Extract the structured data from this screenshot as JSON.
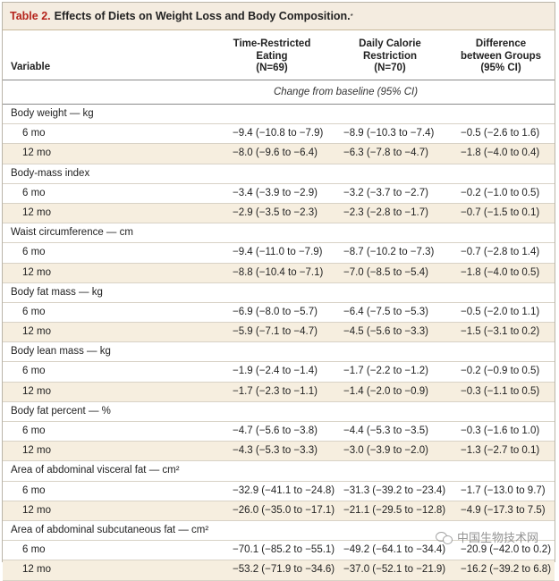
{
  "title": {
    "number": "Table 2.",
    "text": "Effects of Diets on Weight Loss and Body Composition.",
    "footnote_mark": "*"
  },
  "columns": {
    "variable": "Variable",
    "col1": [
      "Time-Restricted",
      "Eating",
      "(N=69)"
    ],
    "col2": [
      "Daily Calorie",
      "Restriction",
      "(N=70)"
    ],
    "col3": [
      "Difference",
      "between Groups",
      "(95% CI)"
    ]
  },
  "subheader": "Change from baseline (95% CI)",
  "groups": [
    {
      "label": "Body weight — kg",
      "rows": [
        {
          "label": "6 mo",
          "c1": "−9.4 (−10.8 to −7.9)",
          "c2": "−8.9 (−10.3 to −7.4)",
          "c3": "−0.5 (−2.6 to 1.6)"
        },
        {
          "label": "12 mo",
          "c1": "−8.0 (−9.6 to −6.4)",
          "c2": "−6.3 (−7.8 to −4.7)",
          "c3": "−1.8 (−4.0 to 0.4)"
        }
      ]
    },
    {
      "label": "Body-mass index",
      "rows": [
        {
          "label": "6 mo",
          "c1": "−3.4 (−3.9 to −2.9)",
          "c2": "−3.2 (−3.7 to −2.7)",
          "c3": "−0.2 (−1.0 to 0.5)"
        },
        {
          "label": "12 mo",
          "c1": "−2.9 (−3.5 to −2.3)",
          "c2": "−2.3 (−2.8 to −1.7)",
          "c3": "−0.7 (−1.5 to 0.1)"
        }
      ]
    },
    {
      "label": "Waist circumference — cm",
      "rows": [
        {
          "label": "6 mo",
          "c1": "−9.4 (−11.0 to −7.9)",
          "c2": "−8.7 (−10.2 to −7.3)",
          "c3": "−0.7 (−2.8 to 1.4)"
        },
        {
          "label": "12 mo",
          "c1": "−8.8 (−10.4 to −7.1)",
          "c2": "−7.0 (−8.5 to −5.4)",
          "c3": "−1.8 (−4.0 to 0.5)"
        }
      ]
    },
    {
      "label": "Body fat mass — kg",
      "rows": [
        {
          "label": "6 mo",
          "c1": "−6.9 (−8.0 to −5.7)",
          "c2": "−6.4 (−7.5 to −5.3)",
          "c3": "−0.5 (−2.0 to 1.1)"
        },
        {
          "label": "12 mo",
          "c1": "−5.9 (−7.1 to −4.7)",
          "c2": "−4.5 (−5.6 to −3.3)",
          "c3": "−1.5 (−3.1 to 0.2)"
        }
      ]
    },
    {
      "label": "Body lean mass — kg",
      "rows": [
        {
          "label": "6 mo",
          "c1": "−1.9 (−2.4 to −1.4)",
          "c2": "−1.7 (−2.2 to −1.2)",
          "c3": "−0.2 (−0.9 to 0.5)"
        },
        {
          "label": "12 mo",
          "c1": "−1.7 (−2.3 to −1.1)",
          "c2": "−1.4 (−2.0 to −0.9)",
          "c3": "−0.3 (−1.1 to 0.5)"
        }
      ]
    },
    {
      "label": "Body fat percent — %",
      "rows": [
        {
          "label": "6 mo",
          "c1": "−4.7 (−5.6 to −3.8)",
          "c2": "−4.4 (−5.3 to −3.5)",
          "c3": "−0.3 (−1.6 to 1.0)"
        },
        {
          "label": "12 mo",
          "c1": "−4.3 (−5.3 to −3.3)",
          "c2": "−3.0 (−3.9 to −2.0)",
          "c3": "−1.3 (−2.7 to 0.1)"
        }
      ]
    },
    {
      "label": "Area of abdominal visceral fat — cm²",
      "rows": [
        {
          "label": "6 mo",
          "c1": "−32.9 (−41.1 to −24.8)",
          "c2": "−31.3 (−39.2 to −23.4)",
          "c3": "−1.7 (−13.0 to 9.7)"
        },
        {
          "label": "12 mo",
          "c1": "−26.0 (−35.0 to −17.1)",
          "c2": "−21.1 (−29.5 to −12.8)",
          "c3": "−4.9 (−17.3 to 7.5)"
        }
      ]
    },
    {
      "label": "Area of abdominal subcutaneous fat — cm²",
      "rows": [
        {
          "label": "6 mo",
          "c1": "−70.1 (−85.2 to −55.1)",
          "c2": "−49.2 (−64.1 to −34.4)",
          "c3": "−20.9 (−42.0 to 0.2)"
        },
        {
          "label": "12 mo",
          "c1": "−53.2 (−71.9 to −34.6)",
          "c2": "−37.0 (−52.1 to −21.9)",
          "c3": "−16.2 (−39.2 to 6.8)"
        }
      ]
    }
  ],
  "watermark": "中国生物技术网"
}
